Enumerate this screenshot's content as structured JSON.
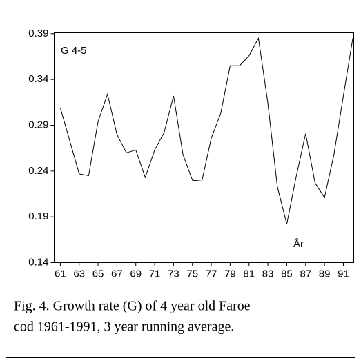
{
  "chart_data": {
    "type": "line",
    "annotations": [
      "G 4-5",
      "År"
    ],
    "caption": [
      "Fig. 4. Growth rate  (G) of 4 year old Faroe",
      "cod 1961-1991, 3 year running average."
    ],
    "x": [
      61,
      62,
      63,
      64,
      65,
      66,
      67,
      68,
      69,
      70,
      71,
      72,
      73,
      74,
      75,
      76,
      77,
      78,
      79,
      80,
      81,
      82,
      83,
      84,
      85,
      86,
      87,
      88,
      89,
      90,
      91,
      92
    ],
    "series": [
      {
        "name": "G 4-5",
        "color": "#000000",
        "values": [
          0.309,
          0.273,
          0.237,
          0.235,
          0.294,
          0.324,
          0.28,
          0.26,
          0.263,
          0.233,
          0.263,
          0.282,
          0.322,
          0.258,
          0.23,
          0.229,
          0.276,
          0.303,
          0.355,
          0.355,
          0.366,
          0.385,
          0.314,
          0.223,
          0.182,
          0.234,
          0.281,
          0.227,
          0.211,
          0.258,
          0.322,
          0.385
        ]
      }
    ],
    "xlim": [
      60.35,
      92.1
    ],
    "xticks": [
      61,
      63,
      65,
      67,
      69,
      71,
      73,
      75,
      77,
      79,
      81,
      83,
      85,
      87,
      89,
      91
    ],
    "ylim": [
      0.14,
      0.391
    ],
    "yticks": [
      0.14,
      0.19,
      0.24,
      0.29,
      0.34,
      0.39
    ]
  }
}
